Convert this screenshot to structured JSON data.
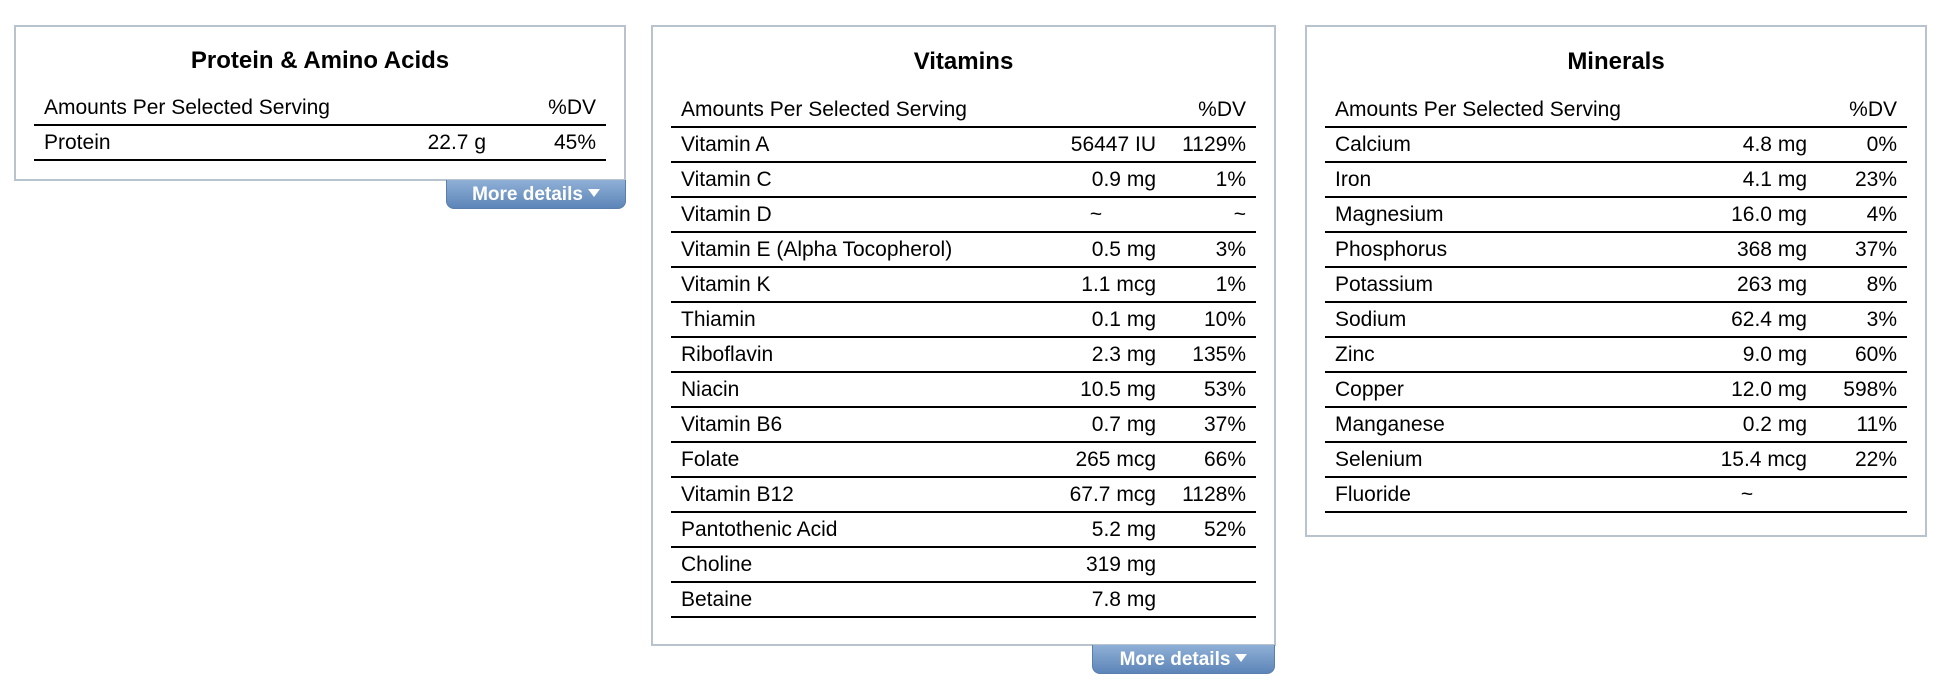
{
  "protein": {
    "title": "Protein & Amino Acids",
    "header_label": "Amounts Per Selected Serving",
    "header_dv": "%DV",
    "rows": [
      {
        "name": "Protein",
        "amount": "22.7 g",
        "dv": "45%"
      }
    ],
    "more_label": "More details"
  },
  "vitamins": {
    "title": "Vitamins",
    "header_label": "Amounts Per Selected Serving",
    "header_dv": "%DV",
    "rows": [
      {
        "name": "Vitamin A",
        "amount": "56447 IU",
        "dv": "1129%"
      },
      {
        "name": "Vitamin C",
        "amount": "0.9 mg",
        "dv": "1%"
      },
      {
        "name": "Vitamin D",
        "amount": "~",
        "dv": "~"
      },
      {
        "name": "Vitamin E (Alpha Tocopherol)",
        "amount": "0.5 mg",
        "dv": "3%"
      },
      {
        "name": "Vitamin K",
        "amount": "1.1 mcg",
        "dv": "1%"
      },
      {
        "name": "Thiamin",
        "amount": "0.1 mg",
        "dv": "10%"
      },
      {
        "name": "Riboflavin",
        "amount": "2.3 mg",
        "dv": "135%"
      },
      {
        "name": "Niacin",
        "amount": "10.5 mg",
        "dv": "53%"
      },
      {
        "name": "Vitamin B6",
        "amount": "0.7 mg",
        "dv": "37%"
      },
      {
        "name": "Folate",
        "amount": "265 mcg",
        "dv": "66%"
      },
      {
        "name": "Vitamin B12",
        "amount": "67.7 mcg",
        "dv": "1128%"
      },
      {
        "name": "Pantothenic Acid",
        "amount": "5.2 mg",
        "dv": "52%"
      },
      {
        "name": "Choline",
        "amount": "319 mg",
        "dv": ""
      },
      {
        "name": "Betaine",
        "amount": "7.8 mg",
        "dv": ""
      }
    ],
    "more_label": "More details"
  },
  "minerals": {
    "title": "Minerals",
    "header_label": "Amounts Per Selected Serving",
    "header_dv": "%DV",
    "rows": [
      {
        "name": "Calcium",
        "amount": "4.8 mg",
        "dv": "0%"
      },
      {
        "name": "Iron",
        "amount": "4.1 mg",
        "dv": "23%"
      },
      {
        "name": "Magnesium",
        "amount": "16.0 mg",
        "dv": "4%"
      },
      {
        "name": "Phosphorus",
        "amount": "368 mg",
        "dv": "37%"
      },
      {
        "name": "Potassium",
        "amount": "263 mg",
        "dv": "8%"
      },
      {
        "name": "Sodium",
        "amount": "62.4 mg",
        "dv": "3%"
      },
      {
        "name": "Zinc",
        "amount": "9.0 mg",
        "dv": "60%"
      },
      {
        "name": "Copper",
        "amount": "12.0 mg",
        "dv": "598%"
      },
      {
        "name": "Manganese",
        "amount": "0.2 mg",
        "dv": "11%"
      },
      {
        "name": "Selenium",
        "amount": "15.4 mcg",
        "dv": "22%"
      },
      {
        "name": "Fluoride",
        "amount": "~",
        "dv": ""
      }
    ]
  },
  "icons": {
    "more_details_caret": "caret-down-icon"
  },
  "colors": {
    "panel_border": "#b9c3cd",
    "button_top": "#8fb0d6",
    "button_bottom": "#5d85b8"
  }
}
